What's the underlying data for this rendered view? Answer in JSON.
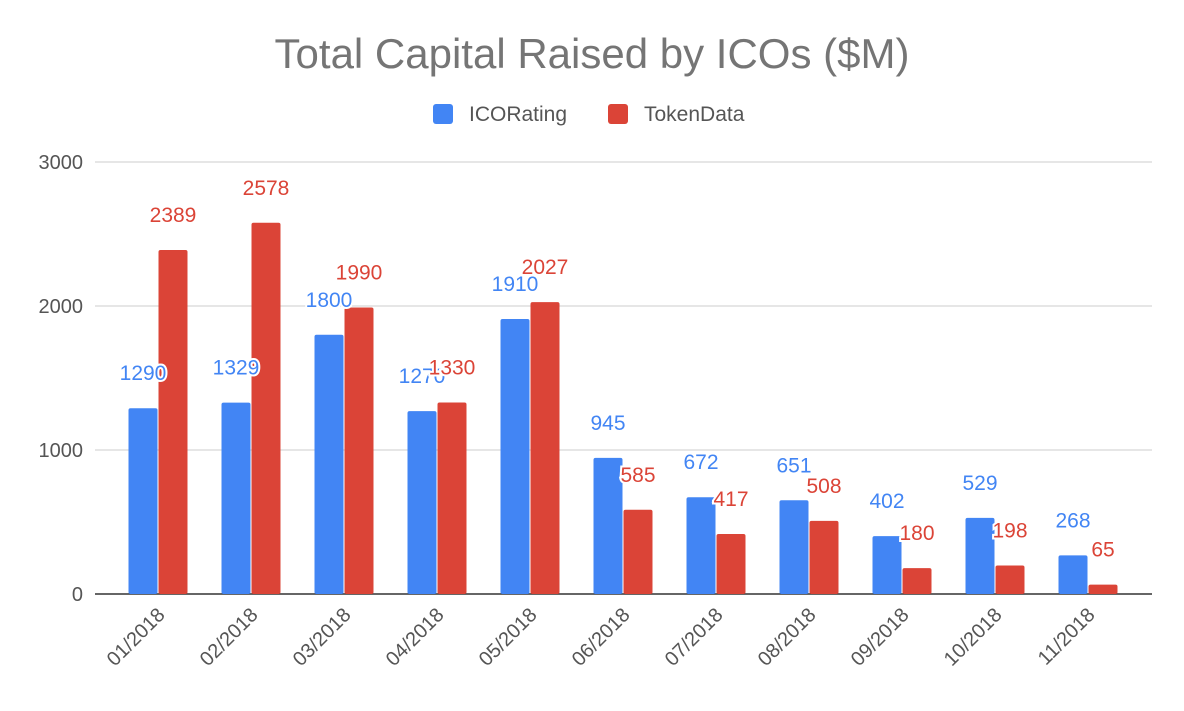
{
  "chart_data": {
    "type": "bar",
    "title": "Total Capital Raised by ICOs ($M)",
    "xlabel": "",
    "ylabel": "",
    "ylim": [
      0,
      3000
    ],
    "yticks": [
      0,
      1000,
      2000,
      3000
    ],
    "grid": true,
    "legend_position": "top-center",
    "categories": [
      "01/2018",
      "02/2018",
      "03/2018",
      "04/2018",
      "05/2018",
      "06/2018",
      "07/2018",
      "08/2018",
      "09/2018",
      "10/2018",
      "11/2018"
    ],
    "series": [
      {
        "name": "ICORating",
        "color": "#4285F4",
        "values": [
          1290,
          1329,
          1800,
          1270,
          1910,
          945,
          672,
          651,
          402,
          529,
          268
        ]
      },
      {
        "name": "TokenData",
        "color": "#DB4437",
        "values": [
          2389,
          2578,
          1990,
          1330,
          2027,
          585,
          417,
          508,
          180,
          198,
          65
        ]
      }
    ]
  }
}
